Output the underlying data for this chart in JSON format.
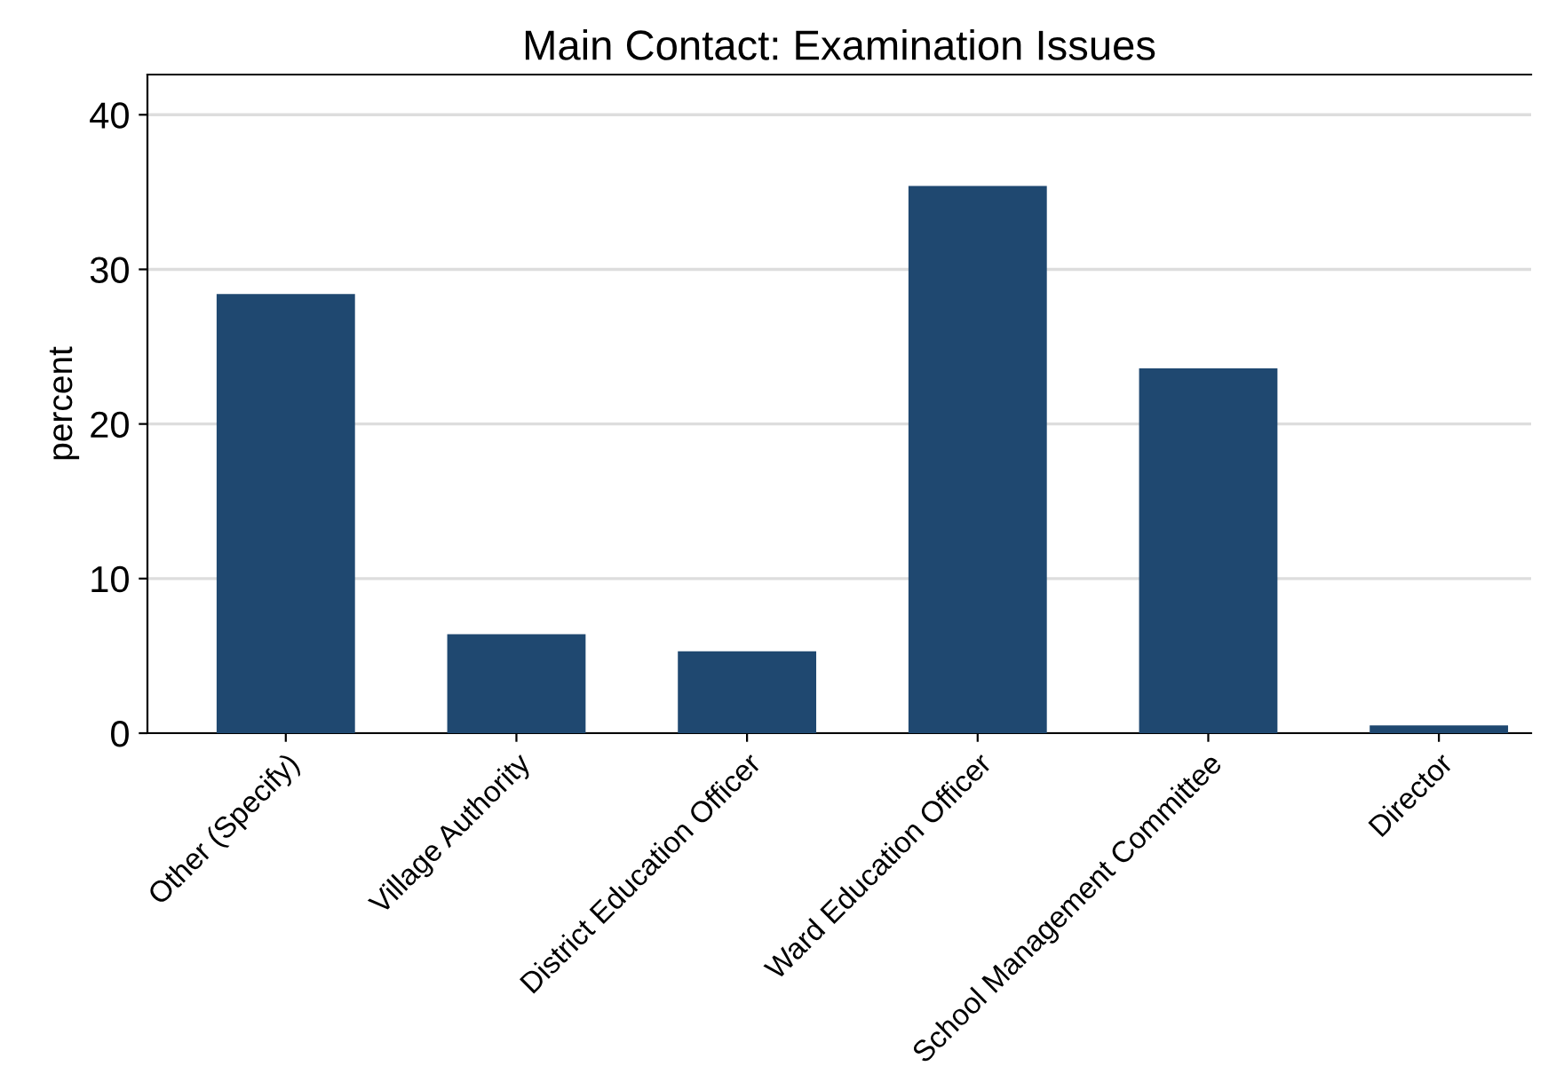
{
  "chart_data": {
    "type": "bar",
    "title": "Main Contact: Examination Issues",
    "ylabel": "percent",
    "categories": [
      "Other (Specify)",
      "Village Authority",
      "District Education Officer",
      "Ward Education Officer",
      "School Management Committee",
      "Director"
    ],
    "values": [
      28.4,
      6.4,
      5.3,
      35.4,
      23.6,
      0.5
    ],
    "color": "#1f4870",
    "ylim": [
      0,
      42.6
    ],
    "yticks": [
      0,
      10,
      20,
      30,
      40
    ],
    "grid": "y",
    "legend": false
  }
}
